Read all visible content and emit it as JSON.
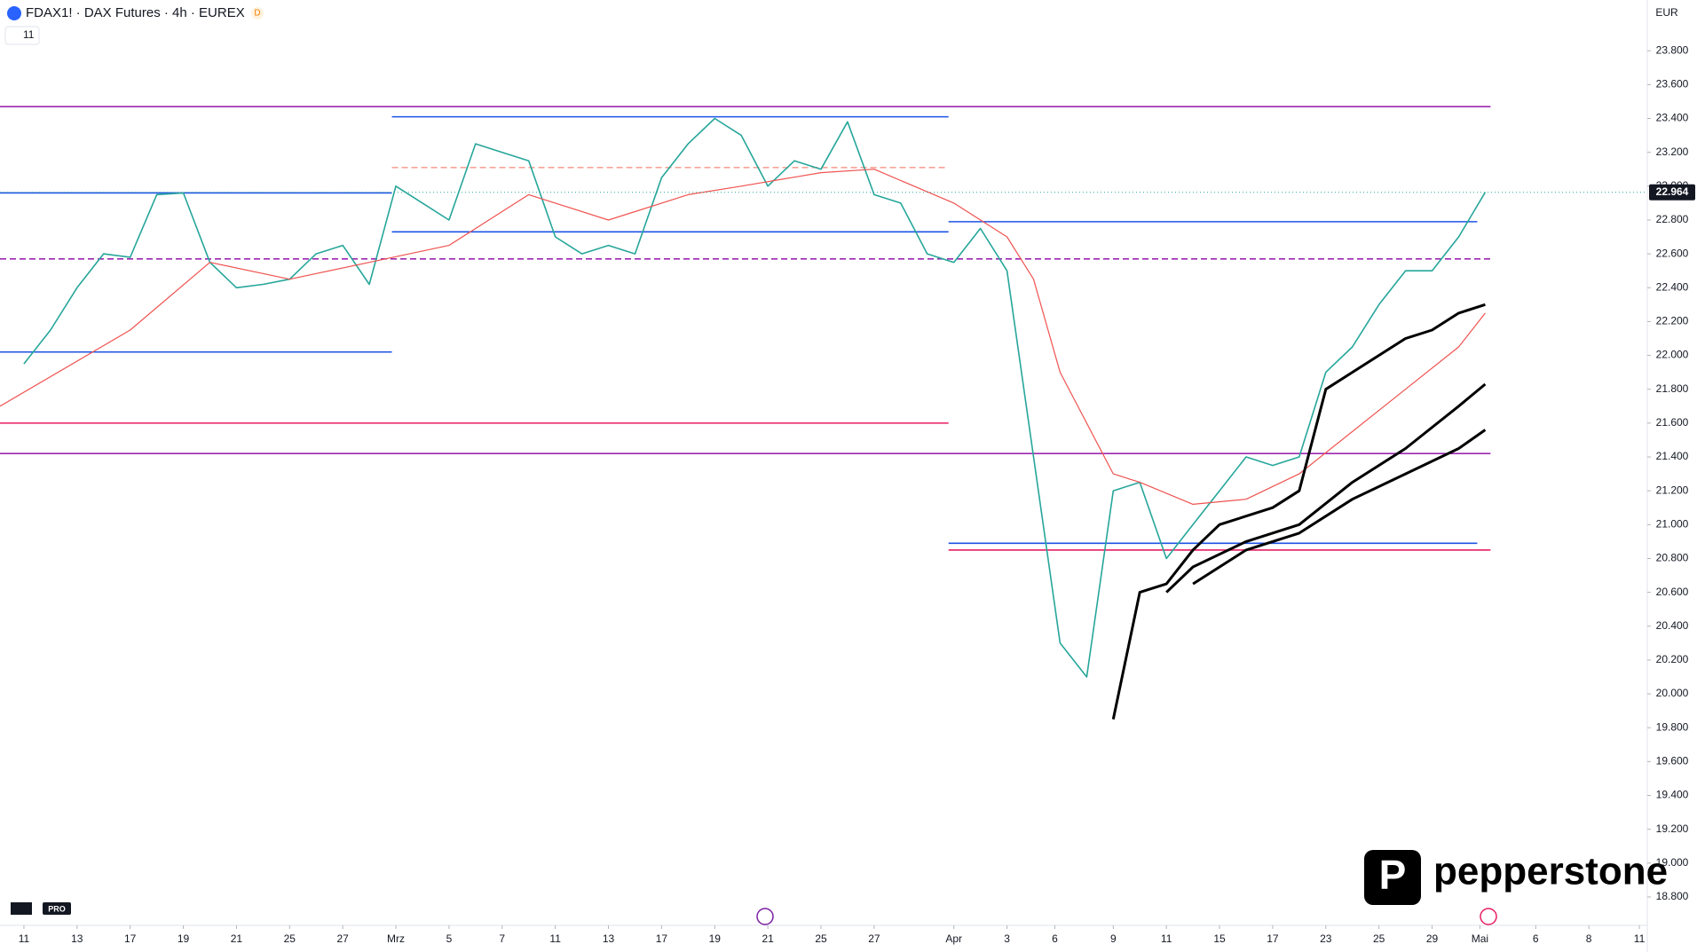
{
  "chart_data": {
    "type": "line",
    "title": "FDAX1! · DAX Futures · 4h · EUREX",
    "interval_badge": "D",
    "indicator_count": "11",
    "currency": "EUR",
    "brand": "pepperstone",
    "badge": "PRO",
    "xlim": [
      -0.9,
      61.1
    ],
    "ylim": [
      18632,
      24100
    ],
    "xticks": [
      {
        "value": 0,
        "label": "11"
      },
      {
        "value": 2,
        "label": "13"
      },
      {
        "value": 4,
        "label": "17"
      },
      {
        "value": 6,
        "label": "19"
      },
      {
        "value": 8,
        "label": "21"
      },
      {
        "value": 10,
        "label": "25"
      },
      {
        "value": 12,
        "label": "27"
      },
      {
        "value": 14,
        "label": "Mrz"
      },
      {
        "value": 16,
        "label": "5"
      },
      {
        "value": 18,
        "label": "7"
      },
      {
        "value": 20,
        "label": "11"
      },
      {
        "value": 22,
        "label": "13"
      },
      {
        "value": 24,
        "label": "17"
      },
      {
        "value": 26,
        "label": "19"
      },
      {
        "value": 28,
        "label": "21"
      },
      {
        "value": 30,
        "label": "25"
      },
      {
        "value": 32,
        "label": "27"
      },
      {
        "value": 35,
        "label": "Apr"
      },
      {
        "value": 37,
        "label": "3"
      },
      {
        "value": 38.8,
        "label": "6"
      },
      {
        "value": 41,
        "label": "9"
      },
      {
        "value": 43,
        "label": "11"
      },
      {
        "value": 45,
        "label": "15"
      },
      {
        "value": 47,
        "label": "17"
      },
      {
        "value": 49,
        "label": "23"
      },
      {
        "value": 51,
        "label": "25"
      },
      {
        "value": 53,
        "label": "29"
      },
      {
        "value": 54.8,
        "label": "Mai"
      },
      {
        "value": 56.9,
        "label": "6"
      },
      {
        "value": 58.9,
        "label": "8"
      },
      {
        "value": 60.8,
        "label": "11"
      }
    ],
    "yticks": [
      {
        "value": 18800,
        "label": "18.800"
      },
      {
        "value": 19000,
        "label": "19.000"
      },
      {
        "value": 19200,
        "label": "19.200"
      },
      {
        "value": 19400,
        "label": "19.400"
      },
      {
        "value": 19600,
        "label": "19.600"
      },
      {
        "value": 19800,
        "label": "19.800"
      },
      {
        "value": 20000,
        "label": "20.000"
      },
      {
        "value": 20200,
        "label": "20.200"
      },
      {
        "value": 20400,
        "label": "20.400"
      },
      {
        "value": 20600,
        "label": "20.600"
      },
      {
        "value": 20800,
        "label": "20.800"
      },
      {
        "value": 21000,
        "label": "21.000"
      },
      {
        "value": 21200,
        "label": "21.200"
      },
      {
        "value": 21400,
        "label": "21.400"
      },
      {
        "value": 21600,
        "label": "21.600"
      },
      {
        "value": 21800,
        "label": "21.800"
      },
      {
        "value": 22000,
        "label": "22.000"
      },
      {
        "value": 22200,
        "label": "22.200"
      },
      {
        "value": 22400,
        "label": "22.400"
      },
      {
        "value": 22600,
        "label": "22.600"
      },
      {
        "value": 22800,
        "label": "22.800"
      },
      {
        "value": 23000,
        "label": "23.000"
      },
      {
        "value": 23200,
        "label": "23.200"
      },
      {
        "value": 23400,
        "label": "23.400"
      },
      {
        "value": 23600,
        "label": "23.600"
      },
      {
        "value": 23800,
        "label": "23.800"
      }
    ],
    "price_marker": {
      "value": 22964,
      "label": "22.964"
    },
    "series": [
      {
        "color": "#26a69a",
        "width": 1.6,
        "x": [
          0,
          1,
          2,
          3,
          4,
          5,
          6,
          7,
          8,
          9,
          10,
          11,
          12,
          13,
          14,
          15,
          16,
          17,
          18,
          19,
          20,
          21,
          22,
          23,
          24,
          25,
          26,
          27,
          28,
          29,
          30,
          31,
          32,
          33,
          34,
          35,
          36,
          37,
          38,
          39,
          40,
          41,
          42,
          43,
          44,
          45,
          46,
          47,
          48,
          49,
          50,
          51,
          52,
          53,
          54,
          55
        ],
        "values": [
          21950,
          22150,
          22400,
          22600,
          22580,
          22950,
          22960,
          22550,
          22400,
          22420,
          22450,
          22600,
          22650,
          22420,
          23000,
          22900,
          22800,
          23250,
          23200,
          23150,
          22700,
          22600,
          22650,
          22600,
          23050,
          23250,
          23400,
          23300,
          23000,
          23150,
          23100,
          23380,
          22950,
          22900,
          22600,
          22550,
          22750,
          22500,
          21400,
          20300,
          20100,
          21200,
          21250,
          20800,
          21000,
          21200,
          21400,
          21350,
          21400,
          21900,
          22050,
          22300,
          22500,
          22500,
          22700,
          22964
        ]
      },
      {
        "color": "#ef5350",
        "width": 1.2,
        "x": [
          -0.9,
          4,
          7,
          10,
          13,
          16,
          19,
          22,
          25,
          27,
          30,
          32,
          35,
          37,
          38,
          39,
          41,
          42,
          44,
          46,
          48,
          50,
          52,
          54,
          55
        ],
        "values": [
          21700,
          22150,
          22550,
          22450,
          22550,
          22650,
          22950,
          22800,
          22950,
          23000,
          23080,
          23100,
          22900,
          22700,
          22450,
          21900,
          21300,
          21250,
          21120,
          21150,
          21300,
          21550,
          21800,
          22050,
          22250
        ]
      },
      {
        "color": "#000000",
        "width": 3,
        "x": [
          41,
          42,
          43,
          44,
          45,
          47,
          48,
          49,
          50,
          52,
          53,
          54,
          55
        ],
        "values": [
          19850,
          20600,
          20650,
          20850,
          21000,
          21100,
          21200,
          21800,
          21900,
          22100,
          22150,
          22250,
          22300
        ]
      },
      {
        "color": "#000000",
        "width": 3,
        "x": [
          43,
          44,
          46,
          48,
          50,
          52,
          54,
          55
        ],
        "values": [
          20600,
          20750,
          20900,
          21000,
          21250,
          21450,
          21700,
          21830
        ]
      },
      {
        "color": "#000000",
        "width": 3,
        "x": [
          44,
          46,
          48,
          50,
          52,
          54,
          55
        ],
        "values": [
          20650,
          20850,
          20950,
          21150,
          21300,
          21450,
          21560
        ]
      }
    ],
    "levels": [
      {
        "value": 23470,
        "color": "#9c27b0",
        "x": [
          -0.9,
          55.2
        ],
        "dashed": false
      },
      {
        "value": 23410,
        "color": "#1e53e5",
        "x": [
          13.85,
          34.8
        ],
        "dashed": false
      },
      {
        "value": 23110,
        "color": "#f7a399",
        "x": [
          13.85,
          34.8
        ],
        "dashed": true
      },
      {
        "value": 22960,
        "color": "#1e53e5",
        "x": [
          -0.9,
          13.85
        ],
        "dashed": false
      },
      {
        "value": 22790,
        "color": "#1e53e5",
        "x": [
          34.8,
          54.7
        ],
        "dashed": false
      },
      {
        "value": 22730,
        "color": "#1e53e5",
        "x": [
          13.85,
          34.8
        ],
        "dashed": false
      },
      {
        "value": 22570,
        "color": "#9c27b0",
        "x": [
          -0.9,
          55.2
        ],
        "dashed": true
      },
      {
        "value": 22020,
        "color": "#1e53e5",
        "x": [
          -0.9,
          13.85
        ],
        "dashed": false
      },
      {
        "value": 21600,
        "color": "#e91e63",
        "x": [
          -0.9,
          34.8
        ],
        "dashed": false
      },
      {
        "value": 21420,
        "color": "#9c27b0",
        "x": [
          -0.9,
          55.2
        ],
        "dashed": false
      },
      {
        "value": 20890,
        "color": "#1e53e5",
        "x": [
          34.8,
          54.7
        ],
        "dashed": false
      },
      {
        "value": 20850,
        "color": "#e91e63",
        "x": [
          34.8,
          55.2
        ],
        "dashed": false
      }
    ]
  }
}
